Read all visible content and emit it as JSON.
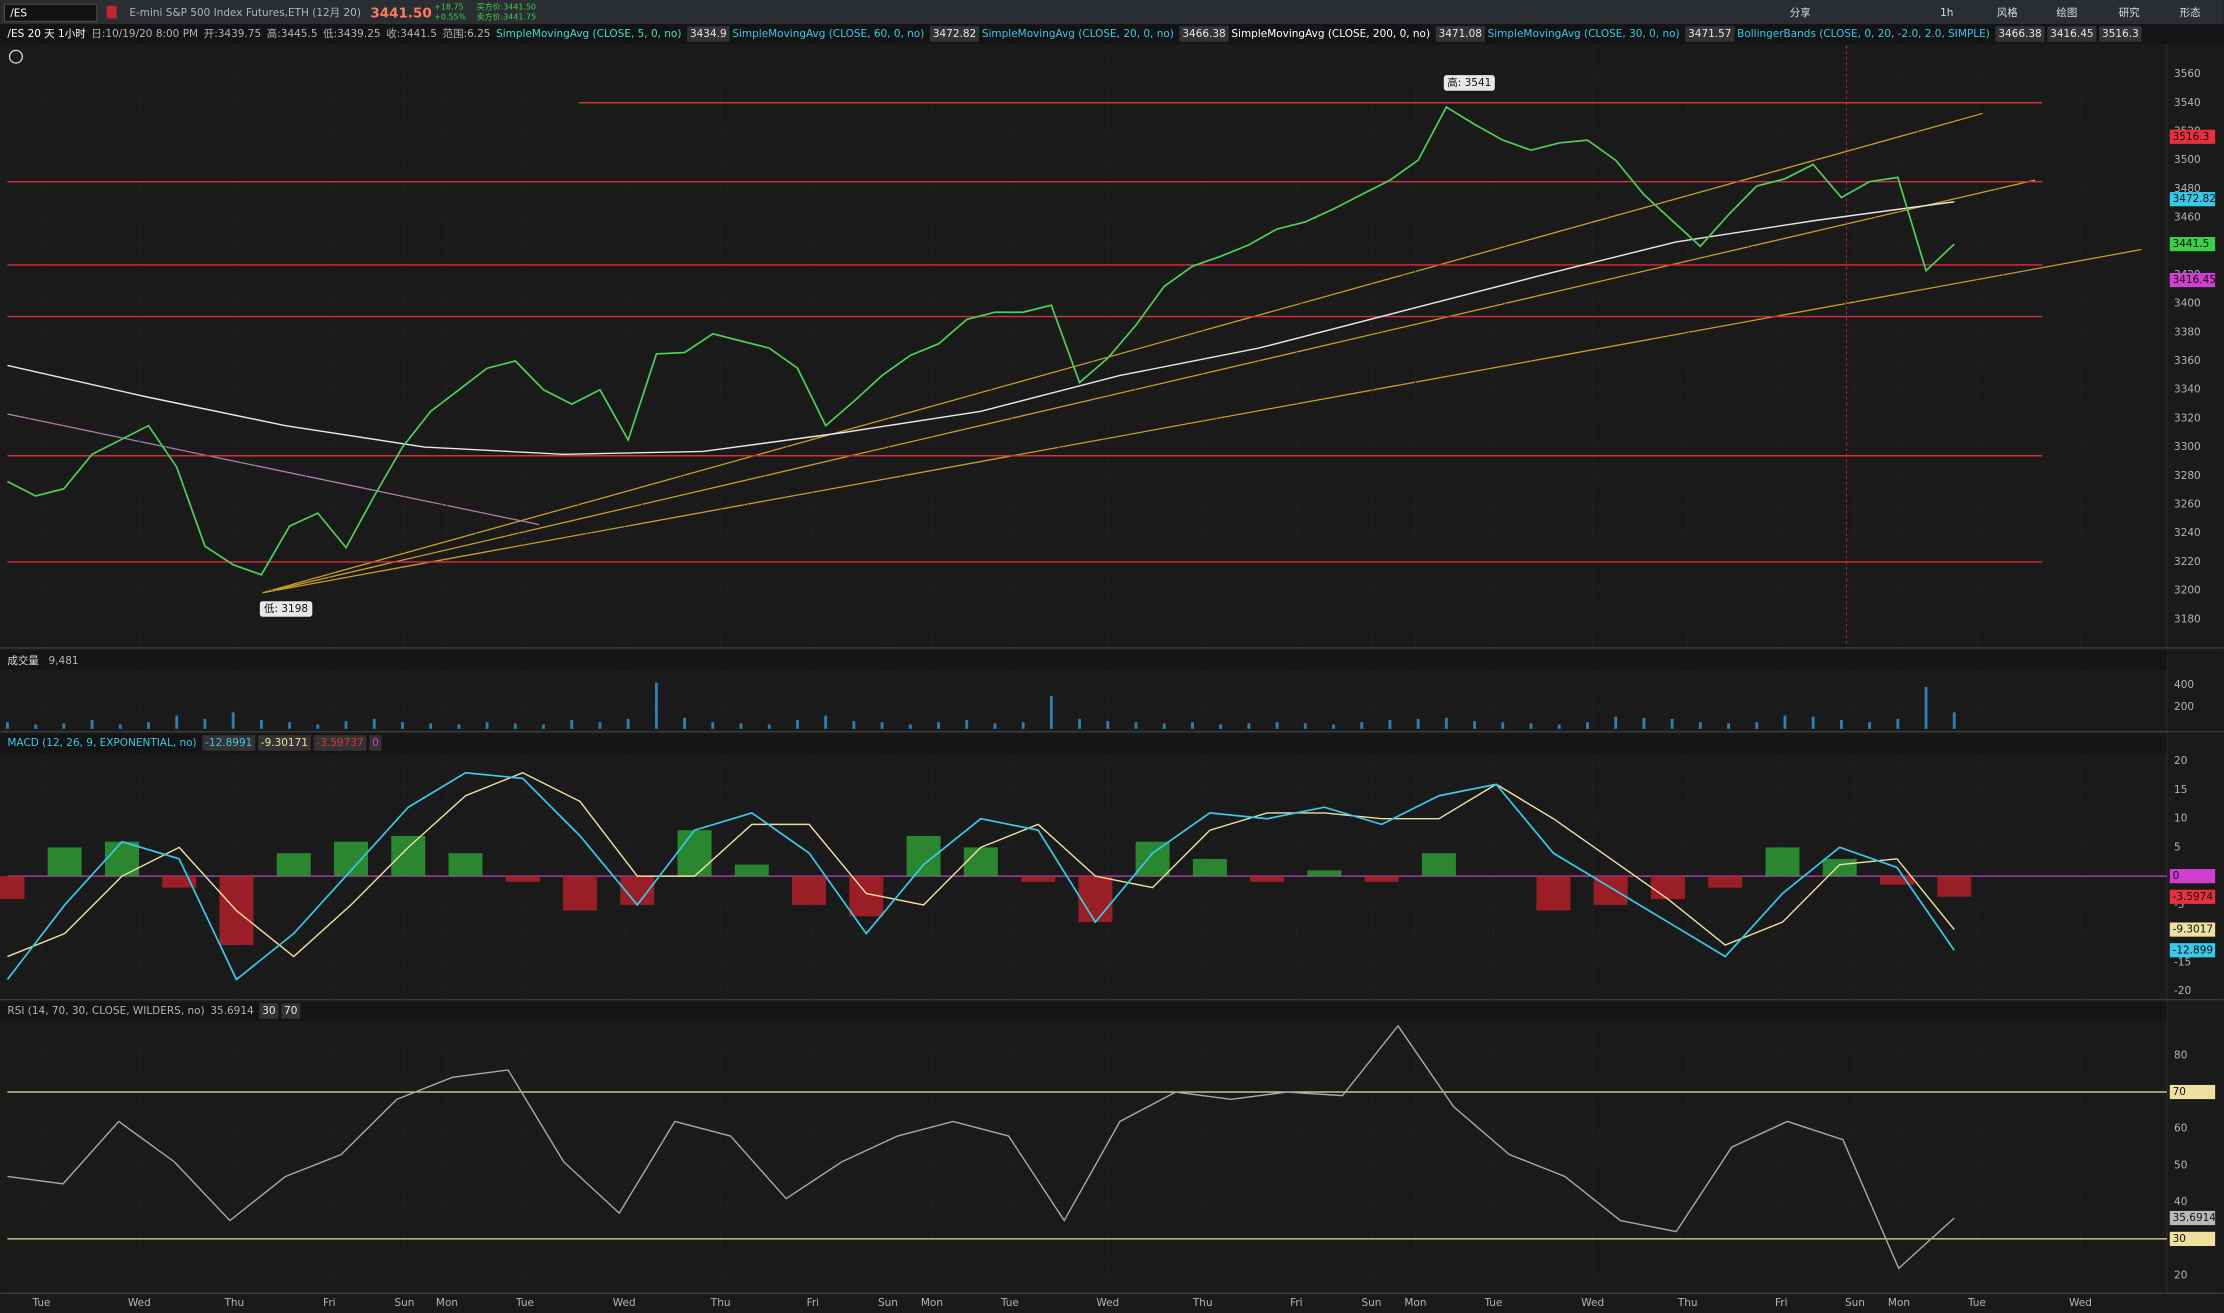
{
  "toolbar": {
    "symbol": "/ES",
    "description": "E-mini S&P 500 Index Futures,ETH (12月 20)",
    "last": "3441.50",
    "change": "+18.75",
    "change_pct": "+0.55%",
    "bid": "买方价:3441.50",
    "ask": "卖方价:3441.75",
    "buttons": [
      "分享",
      "1h",
      "风格",
      "绘图",
      "研究",
      "形态"
    ]
  },
  "header": {
    "period": "/ES 20 天 1小时",
    "quote": [
      "日:10/19/20 8:00 PM",
      "开:3439.75",
      "高:3445.5",
      "低:3439.25",
      "收:3441.5",
      "范围:6.25"
    ],
    "studies": [
      {
        "label": "SimpleMovingAvg (CLOSE, 5, 0, no)",
        "values": [
          "3434.9"
        ],
        "color": "#3ee0c8"
      },
      {
        "label": "SimpleMovingAvg (CLOSE, 60, 0, no)",
        "values": [
          "3472.82"
        ],
        "color": "#3cc8e8"
      },
      {
        "label": "SimpleMovingAvg (CLOSE, 20, 0, no)",
        "values": [
          "3466.38"
        ],
        "color": "#3cc8e8"
      },
      {
        "label": "SimpleMovingAvg (CLOSE, 200, 0, no)",
        "values": [
          "3471.08"
        ],
        "color": "#ffffff"
      },
      {
        "label": "SimpleMovingAvg (CLOSE, 30, 0, no)",
        "values": [
          "3471.57"
        ],
        "color": "#3cc8e8"
      },
      {
        "label": "BollingerBands (CLOSE, 0, 20, -2.0, 2.0, SIMPLE)",
        "values": [
          "3466.38",
          "3416.45",
          "3516.3"
        ],
        "color": "#3cc8e8"
      }
    ]
  },
  "price_panel": {
    "ylim": [
      3162,
      3580
    ],
    "yticks": [
      3180,
      3200,
      3220,
      3240,
      3260,
      3280,
      3300,
      3320,
      3340,
      3360,
      3380,
      3400,
      3420,
      3440,
      3460,
      3480,
      3500,
      3520,
      3540,
      3560
    ],
    "close": [
      3276,
      3266,
      3271,
      3295,
      3305,
      3315,
      3286,
      3231,
      3218,
      3211,
      3245,
      3254,
      3230,
      3266,
      3300,
      3325,
      3340,
      3355,
      3360,
      3340,
      3330,
      3340,
      3305,
      3365,
      3366,
      3379,
      3374,
      3369,
      3355,
      3315,
      3332,
      3350,
      3364,
      3372,
      3389,
      3394,
      3394,
      3399,
      3345,
      3362,
      3385,
      3412,
      3426,
      3433,
      3441,
      3452,
      3457,
      3466,
      3476,
      3486,
      3500,
      3537,
      3525,
      3514,
      3507,
      3512,
      3514,
      3500,
      3476,
      3458,
      3440,
      3462,
      3482,
      3487,
      3497,
      3474,
      3485,
      3488,
      3423,
      3441.5
    ],
    "close_color": "#4fcf5a",
    "sma200": [
      3357,
      3335,
      3315,
      3300,
      3295,
      3297,
      3310,
      3325,
      3350,
      3369,
      3394,
      3419,
      3443,
      3458,
      3471
    ],
    "sma200_color": "#e8e8e8",
    "levels": [
      3540,
      3485,
      3427,
      3391,
      3294,
      3220
    ],
    "level_color": "#d8303a",
    "high_label": "高: 3541",
    "low_label": "低: 3198",
    "flags": [
      {
        "value": 3516.3,
        "label": "3516.3",
        "color": "#e8303a"
      },
      {
        "value": 3472.82,
        "label": "3472.82",
        "color": "#3cc8e8"
      },
      {
        "value": 3441.5,
        "label": "3441.5",
        "color": "#3ccf4a"
      },
      {
        "value": 3416.45,
        "label": "3416.45",
        "color": "#d040d0"
      }
    ]
  },
  "volume_panel": {
    "title": "成交量",
    "readout": "9,481",
    "ylim": [
      0,
      490
    ],
    "yticks": [
      200,
      400
    ],
    "color": "#2f7fb0",
    "values": [
      60,
      40,
      50,
      80,
      40,
      60,
      120,
      90,
      150,
      80,
      60,
      40,
      70,
      90,
      60,
      50,
      40,
      60,
      50,
      40,
      80,
      60,
      90,
      420,
      100,
      60,
      50,
      40,
      80,
      120,
      70,
      60,
      40,
      60,
      80,
      50,
      60,
      300,
      90,
      70,
      60,
      50,
      60,
      40,
      50,
      60,
      50,
      40,
      60,
      80,
      90,
      100,
      70,
      60,
      50,
      40,
      60,
      110,
      100,
      90,
      60,
      50,
      60,
      120,
      110,
      80,
      60,
      90,
      380,
      150
    ]
  },
  "macd_panel": {
    "title": "MACD (12, 26, 9, EXPONENTIAL, no)",
    "readouts": [
      "-12.8991",
      "-9.30171",
      "-3.59737",
      "0"
    ],
    "ylim": [
      -21,
      21.2
    ],
    "yticks": [
      -20,
      -15,
      -10,
      -5,
      0,
      5,
      10,
      15,
      20
    ],
    "value": [
      -18,
      -5,
      6,
      3,
      -18,
      -10,
      1,
      12,
      18,
      17,
      7,
      -5,
      8,
      11,
      4,
      -10,
      2,
      10,
      8,
      -8,
      4,
      11,
      10,
      12,
      9,
      14,
      16,
      4,
      -2,
      -8,
      -14,
      -3,
      5,
      1.5,
      -12.8991
    ],
    "value_color": "#3cc8e8",
    "avg": [
      -14,
      -10,
      0,
      5,
      -6,
      -14,
      -5,
      5,
      14,
      18,
      13,
      0,
      0,
      9,
      9,
      -3,
      -5,
      5,
      9,
      0,
      -2,
      8,
      11,
      11,
      10,
      10,
      16,
      10,
      3,
      -4,
      -12,
      -8,
      2,
      3,
      -9.30171
    ],
    "avg_color": "#f0e0a0",
    "diff": [
      -4,
      5,
      6,
      -2,
      -12,
      4,
      6,
      7,
      4,
      -1,
      -6,
      -5,
      8,
      2,
      -5,
      -7,
      7,
      5,
      -1,
      -8,
      6,
      3,
      -1,
      1,
      -1,
      4,
      0,
      -6,
      -5,
      -4,
      -2,
      5,
      3,
      -1.5,
      -3.59737
    ],
    "zero": 0,
    "flags": [
      {
        "value": 0,
        "label": "0",
        "color": "#d040d0"
      },
      {
        "value": -3.59737,
        "label": "-3.5974",
        "color": "#e8303a"
      },
      {
        "value": -9.30171,
        "label": "-9.3017",
        "color": "#f0e0a0"
      },
      {
        "value": -12.8991,
        "label": "-12.899",
        "color": "#3cc8e8"
      }
    ]
  },
  "rsi_panel": {
    "title": "RSI (14, 70, 30, CLOSE, WILDERS, no)",
    "readout": "35.6914",
    "overbought": 70,
    "oversold": 30,
    "ylim": [
      16,
      94
    ],
    "yticks": [
      20,
      30,
      40,
      50,
      60,
      70,
      80
    ],
    "values": [
      47,
      45,
      62,
      51,
      35,
      47,
      53,
      68,
      74,
      76,
      51,
      37,
      62,
      58,
      41,
      51,
      58,
      62,
      58,
      35,
      62,
      70,
      68,
      70,
      69,
      88,
      66,
      53,
      47,
      35,
      32,
      55,
      62,
      57,
      22,
      35.6914
    ],
    "color": "#a8a8a8",
    "flags": [
      {
        "value": 70,
        "label": "70",
        "color": "#f0e0a0"
      },
      {
        "value": 35.6914,
        "label": "35.6914",
        "color": "#b8b8b8"
      },
      {
        "value": 30,
        "label": "30",
        "color": "#f0e0a0"
      }
    ]
  },
  "x_axis": {
    "labels": [
      "Tue",
      "Wed",
      "Thu",
      "Fri",
      "Sun",
      "Mon",
      "Tue",
      "Wed",
      "Thu",
      "Fri",
      "Sun",
      "Mon",
      "Tue",
      "Wed",
      "Thu",
      "Fri",
      "Sun",
      "Mon",
      "Tue",
      "Wed",
      "Thu",
      "Fri",
      "Sun",
      "Mon",
      "Tue",
      "Wed"
    ]
  }
}
